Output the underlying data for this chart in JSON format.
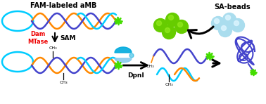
{
  "title": "FAM-labeled aMB",
  "title2": "SA-beads",
  "label_dam": "Dam\nMTase",
  "label_sam": "SAM",
  "label_dpni": "DpnI",
  "label_ch3": "CH₃",
  "bg_color": "#ffffff",
  "cyan_color": "#00ccff",
  "orange_color": "#ff8800",
  "purple_color": "#4444cc",
  "green_star": "#44dd00",
  "bead_green": "#66cc00",
  "bead_sa": "#aaddee",
  "red_color": "#ee0000",
  "black": "#000000",
  "dpni_blue": "#00aadd",
  "dpni_light": "#88ccee"
}
